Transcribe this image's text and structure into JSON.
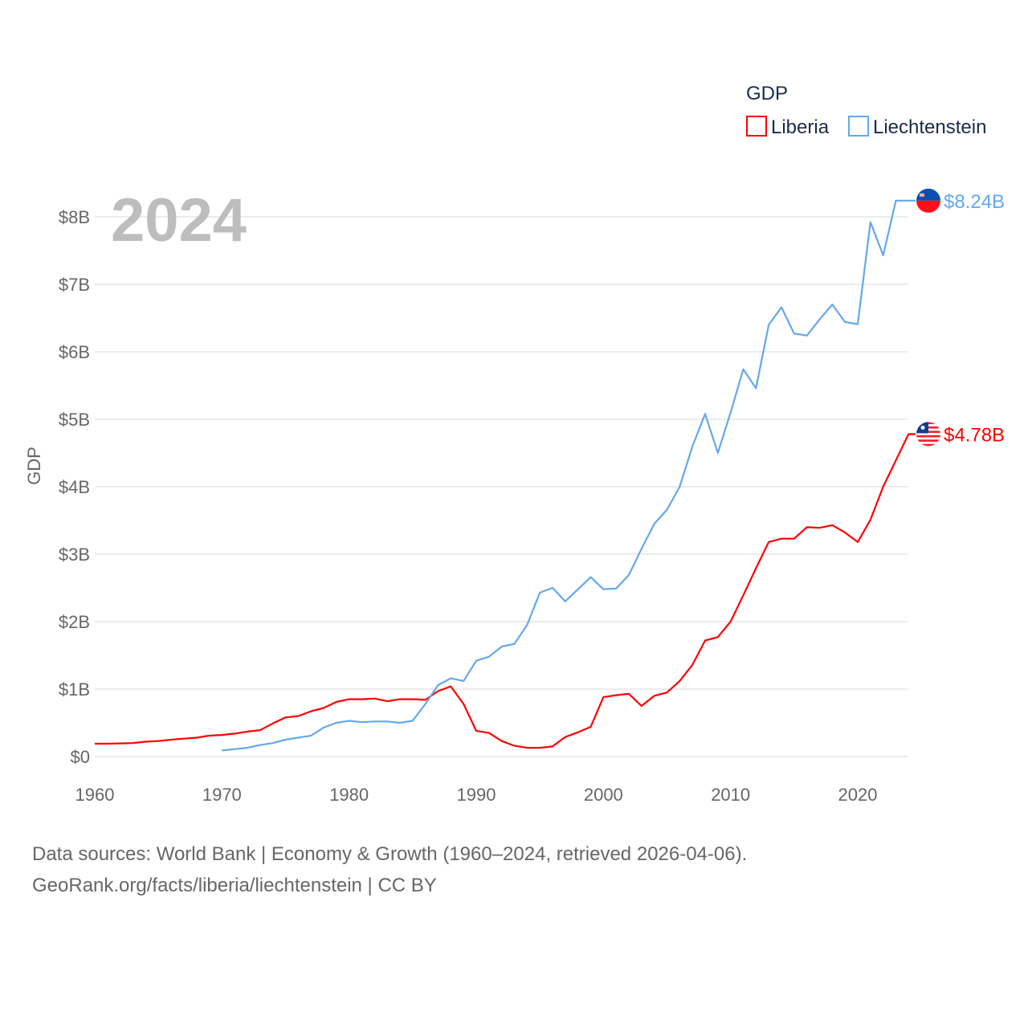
{
  "chart_data": {
    "type": "line",
    "title": "GDP",
    "year_watermark": "2024",
    "xlabel": "",
    "ylabel": "GDP",
    "xlim": [
      1960,
      2024
    ],
    "ylim": [
      0,
      8
    ],
    "x_ticks": [
      1960,
      1970,
      1980,
      1990,
      2000,
      2010,
      2020
    ],
    "x_tick_labels": [
      "1960",
      "1970",
      "1980",
      "1990",
      "2000",
      "2010",
      "2020"
    ],
    "y_ticks": [
      0,
      1,
      2,
      3,
      4,
      5,
      6,
      7,
      8
    ],
    "y_tick_labels": [
      "$0",
      "$1B",
      "$2B",
      "$3B",
      "$4B",
      "$5B",
      "$6B",
      "$7B",
      "$8B"
    ],
    "grid": true,
    "legend_position": "top-right",
    "series": [
      {
        "name": "Liberia",
        "color": "#ff0000",
        "start_year": 1960,
        "end_label": "$4.78B",
        "flag": "liberia-flag",
        "values": [
          0.19,
          0.19,
          0.195,
          0.2,
          0.22,
          0.23,
          0.25,
          0.265,
          0.28,
          0.31,
          0.32,
          0.34,
          0.37,
          0.39,
          0.49,
          0.58,
          0.6,
          0.67,
          0.72,
          0.81,
          0.85,
          0.85,
          0.86,
          0.82,
          0.85,
          0.85,
          0.84,
          0.97,
          1.04,
          0.78,
          0.38,
          0.35,
          0.23,
          0.16,
          0.13,
          0.13,
          0.15,
          0.29,
          0.36,
          0.44,
          0.88,
          0.91,
          0.93,
          0.75,
          0.9,
          0.95,
          1.12,
          1.36,
          1.72,
          1.77,
          2.0,
          2.39,
          2.79,
          3.18,
          3.23,
          3.23,
          3.4,
          3.39,
          3.43,
          3.32,
          3.18,
          3.51,
          4.0,
          4.39,
          4.78
        ]
      },
      {
        "name": "Liechtenstein",
        "color": "#64a8ec",
        "start_year": 1970,
        "end_label": "$8.24B",
        "flag": "liechtenstein-flag",
        "values": [
          0.09,
          0.11,
          0.13,
          0.17,
          0.2,
          0.25,
          0.28,
          0.31,
          0.43,
          0.5,
          0.53,
          0.51,
          0.52,
          0.52,
          0.5,
          0.53,
          0.78,
          1.06,
          1.16,
          1.12,
          1.42,
          1.48,
          1.63,
          1.67,
          1.95,
          2.43,
          2.5,
          2.3,
          2.48,
          2.66,
          2.48,
          2.49,
          2.69,
          3.08,
          3.45,
          3.66,
          4.0,
          4.6,
          5.08,
          4.5,
          5.1,
          5.74,
          5.46,
          6.4,
          6.66,
          6.27,
          6.24,
          6.48,
          6.7,
          6.44,
          6.41,
          7.92,
          7.43,
          8.24,
          8.24
        ]
      }
    ]
  },
  "footer": {
    "line1": "Data sources: World Bank | Economy & Growth (1960–2024, retrieved 2026-04-06).",
    "line2": "GeoRank.org/facts/liberia/liechtenstein | CC BY"
  }
}
